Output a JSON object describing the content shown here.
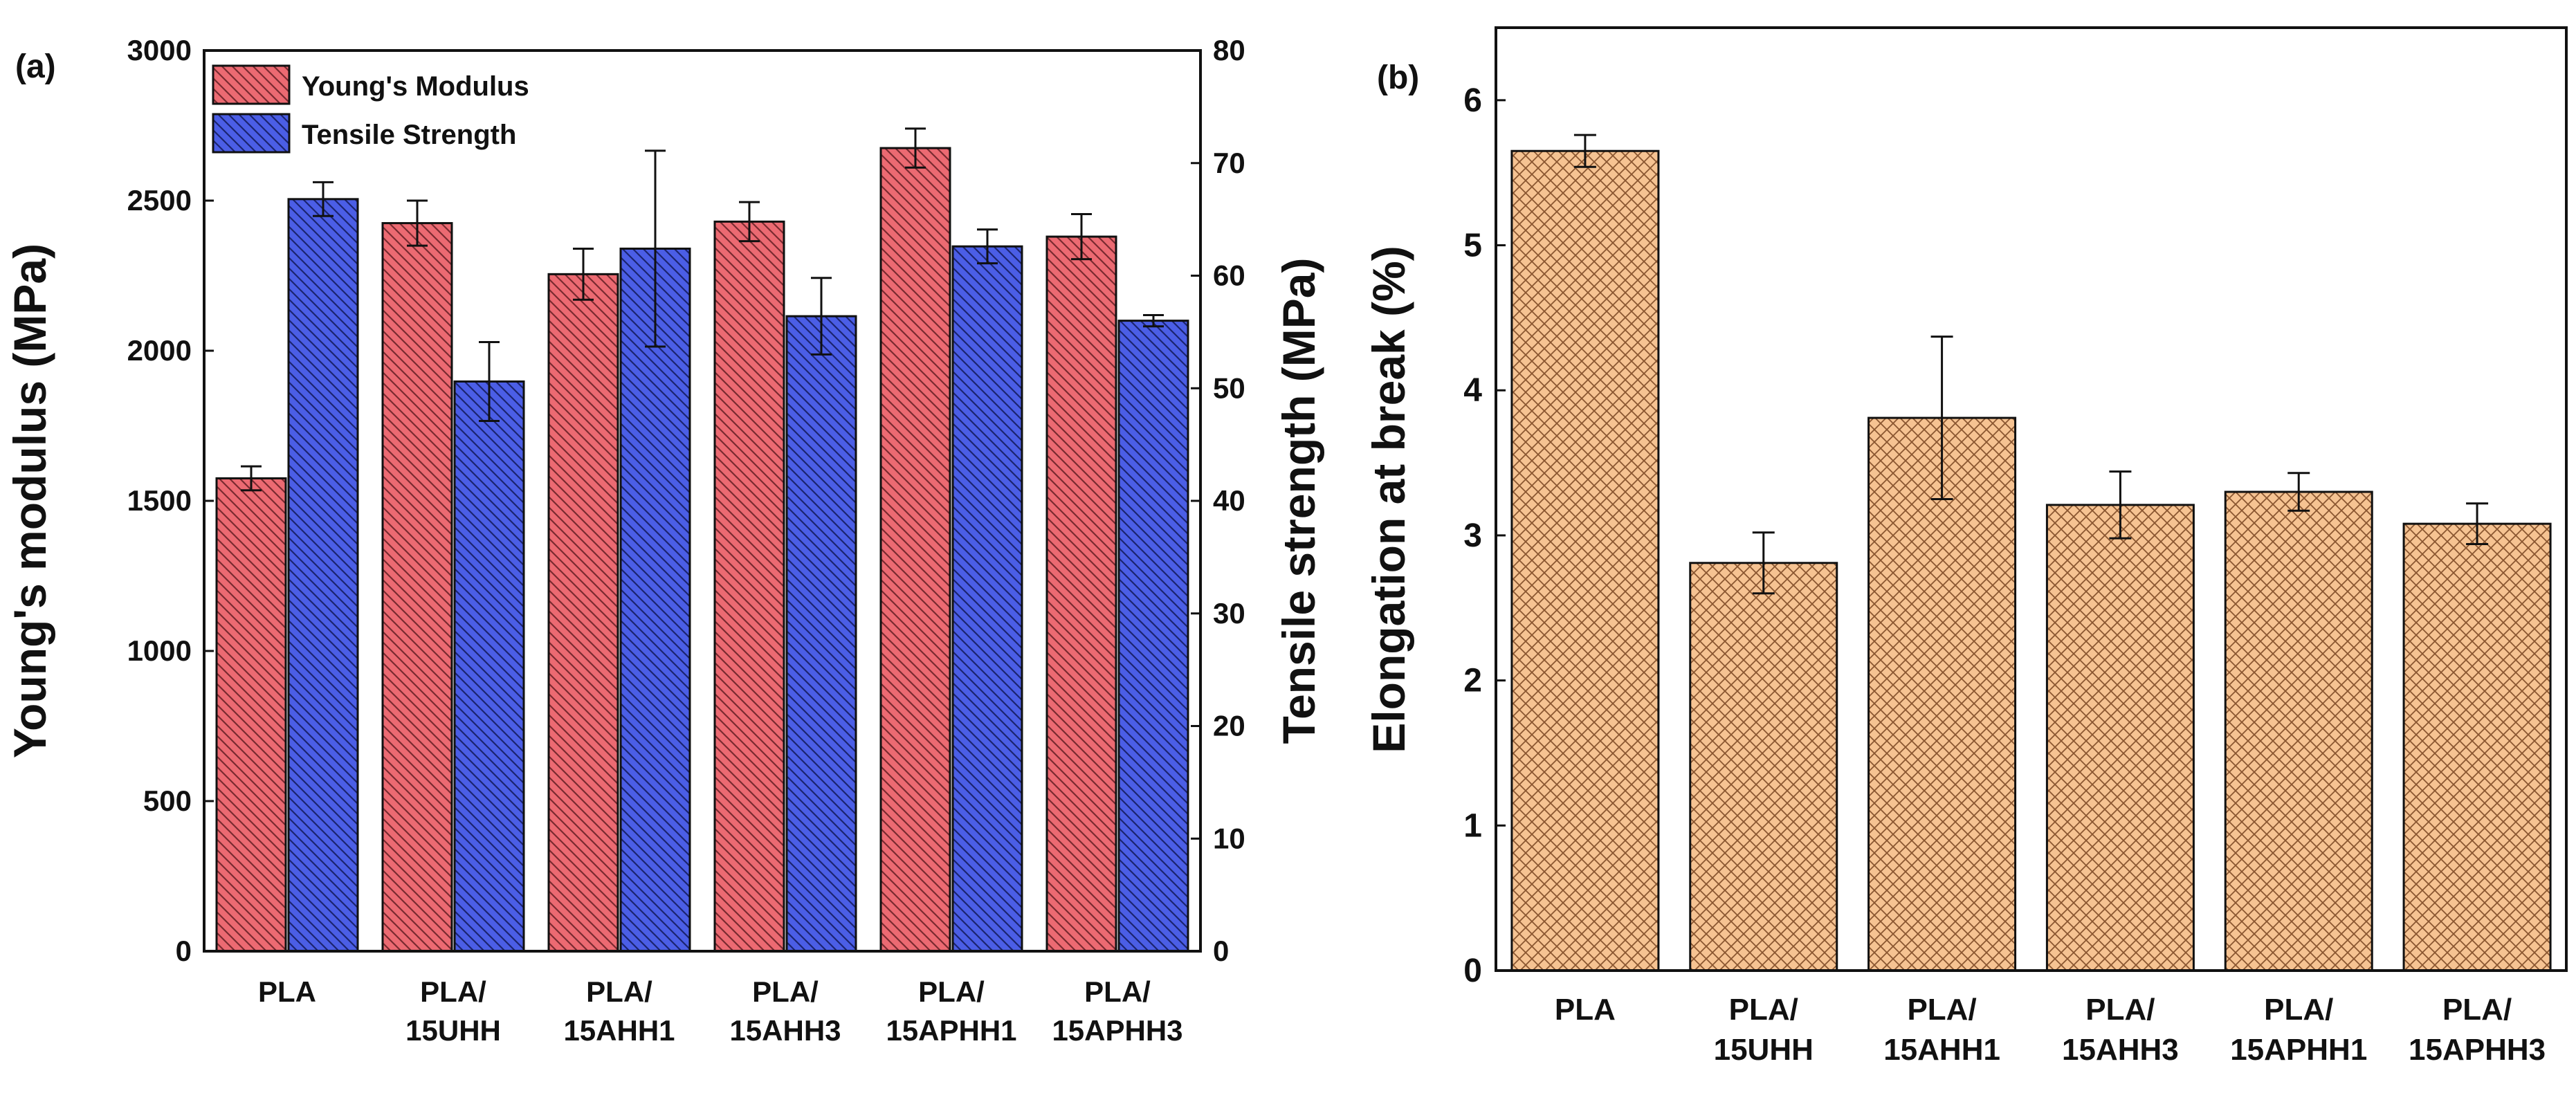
{
  "chart_data": [
    {
      "panel": "(a)",
      "type": "bar",
      "categories": [
        [
          "PLA"
        ],
        [
          "PLA/",
          "15UHH"
        ],
        [
          "PLA/",
          "15AHH1"
        ],
        [
          "PLA/",
          "15AHH3"
        ],
        [
          "PLA/",
          "15APHH1"
        ],
        [
          "PLA/",
          "15APHH3"
        ]
      ],
      "series": [
        {
          "name": "Young's Modulus",
          "axis": "left",
          "color": "#e8636b",
          "values": [
            1575,
            2425,
            2255,
            2430,
            2675,
            2380
          ],
          "errors": [
            40,
            75,
            85,
            65,
            65,
            75
          ]
        },
        {
          "name": "Tensile Strength",
          "axis": "right",
          "color": "#4a5fe0",
          "values": [
            66.8,
            50.6,
            62.4,
            56.4,
            62.6,
            56.0
          ],
          "errors": [
            1.5,
            3.5,
            8.7,
            3.4,
            1.5,
            0.5
          ]
        }
      ],
      "ylabel": "Young's modulus (MPa)",
      "ylim": [
        0,
        3000
      ],
      "yticks": [
        0,
        500,
        1000,
        1500,
        2000,
        2500,
        3000
      ],
      "y2label": "Tensile strength (MPa)",
      "y2lim": [
        0,
        80
      ],
      "y2ticks": [
        0,
        10,
        20,
        30,
        40,
        50,
        60,
        70,
        80
      ],
      "legend": "top-left"
    },
    {
      "panel": "(b)",
      "type": "bar",
      "categories": [
        [
          "PLA"
        ],
        [
          "PLA/",
          "15UHH"
        ],
        [
          "PLA/",
          "15AHH1"
        ],
        [
          "PLA/",
          "15AHH3"
        ],
        [
          "PLA/",
          "15APHH1"
        ],
        [
          "PLA/",
          "15APHH3"
        ]
      ],
      "series": [
        {
          "name": "Elongation at break",
          "color": "#f5c08f",
          "values": [
            5.65,
            2.81,
            3.81,
            3.21,
            3.3,
            3.08
          ],
          "errors": [
            0.11,
            0.21,
            0.56,
            0.23,
            0.13,
            0.14
          ]
        }
      ],
      "ylabel": "Elongation at break (%)",
      "ylim": [
        0,
        6.5
      ],
      "yticks": [
        0,
        1,
        2,
        3,
        4,
        5,
        6
      ]
    }
  ]
}
